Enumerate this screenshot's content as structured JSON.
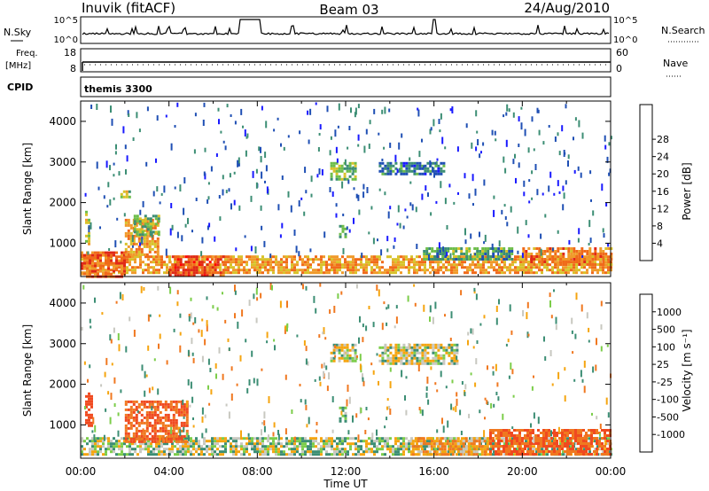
{
  "header": {
    "station": "Inuvik (fitACF)",
    "beam": "Beam 03",
    "date": "24/Aug/2010"
  },
  "panels": {
    "nsky": {
      "label_left": "N.Sky",
      "label_right": "N.Search",
      "ticks_left": [
        "10^5",
        "10^0"
      ],
      "ticks_right": [
        "10^5",
        "10^0"
      ]
    },
    "freq": {
      "label_left_line1": "Freq.",
      "label_left_line2": "[MHz]",
      "label_right": "Nave",
      "ticks_left": [
        "18",
        "8"
      ],
      "ticks_right": [
        "60",
        "0"
      ]
    },
    "cpid": {
      "label": "CPID",
      "mode": "themis 3300"
    }
  },
  "xaxis": {
    "label": "Time UT",
    "ticks": [
      "00:00",
      "04:00",
      "08:00",
      "12:00",
      "16:00",
      "20:00",
      "00:00"
    ],
    "range_hours": [
      0,
      24
    ]
  },
  "yaxis": {
    "label": "Slant Range [km]",
    "ticks": [
      "1000",
      "2000",
      "3000",
      "4000"
    ],
    "range_km": [
      180,
      4500
    ]
  },
  "power_colorbar": {
    "label": "Power [dB]",
    "labels": [
      "4",
      "8",
      "12",
      "16",
      "20",
      "24",
      "28"
    ],
    "colors": [
      "#1a1aff",
      "#1f4fb4",
      "#3c8e74",
      "#6dbd4a",
      "#d8c22a",
      "#f09a2a",
      "#f06a1a",
      "#e02818",
      "#ff0000"
    ]
  },
  "velocity_colorbar": {
    "label": "Velocity [m s⁻¹]",
    "labels": [
      "1000",
      "500",
      "100",
      "25",
      "-25",
      "-100",
      "-500",
      "-1000"
    ],
    "colors": [
      "#2040c0",
      "#2e6cb0",
      "#3c8e74",
      "#7ccd4a",
      "#c8c8c0",
      "#f5a510",
      "#f07820",
      "#f04a20",
      "#ff0000"
    ]
  },
  "chart_data": {
    "type": "heatmap",
    "title": "Inuvik (fitACF) Beam 03 24/Aug/2010",
    "xlabel": "Time UT",
    "ylabel": "Slant Range [km]",
    "xlim_hours": [
      0,
      24
    ],
    "ylim_km": [
      180,
      4500
    ],
    "power_regions": [
      {
        "t": [
          0.0,
          24.0
        ],
        "r": [
          250,
          700
        ],
        "db": 22
      },
      {
        "t": [
          0.0,
          2.0
        ],
        "r": [
          200,
          800
        ],
        "db": 26
      },
      {
        "t": [
          4.0,
          6.5
        ],
        "r": [
          200,
          700
        ],
        "db": 28
      },
      {
        "t": [
          2.0,
          3.5
        ],
        "r": [
          700,
          1600
        ],
        "db": 22
      },
      {
        "t": [
          2.4,
          3.5
        ],
        "r": [
          1200,
          1700
        ],
        "db": 14
      },
      {
        "t": [
          11.3,
          12.4
        ],
        "r": [
          2550,
          3000
        ],
        "db": 14
      },
      {
        "t": [
          11.7,
          12.0
        ],
        "r": [
          1150,
          1450
        ],
        "db": 12
      },
      {
        "t": [
          13.5,
          16.5
        ],
        "r": [
          2700,
          3000
        ],
        "db": 8
      },
      {
        "t": [
          15.5,
          19.5
        ],
        "r": [
          600,
          900
        ],
        "db": 12
      },
      {
        "t": [
          20.0,
          24.0
        ],
        "r": [
          500,
          900
        ],
        "db": 24
      },
      {
        "t": [
          1.8,
          2.2
        ],
        "r": [
          2150,
          2300
        ],
        "db": 16
      },
      {
        "t": [
          0.2,
          0.4
        ],
        "r": [
          1000,
          1800
        ],
        "db": 18
      }
    ],
    "velocity_regions": [
      {
        "t": [
          0.0,
          24.0
        ],
        "r": [
          250,
          700
        ],
        "v": 25
      },
      {
        "t": [
          2.0,
          4.8
        ],
        "r": [
          600,
          1600
        ],
        "v": -300
      },
      {
        "t": [
          0.2,
          0.5
        ],
        "r": [
          1000,
          1800
        ],
        "v": -500
      },
      {
        "t": [
          11.3,
          12.4
        ],
        "r": [
          2550,
          3000
        ],
        "v": 0
      },
      {
        "t": [
          11.7,
          12.0
        ],
        "r": [
          1100,
          1450
        ],
        "v": 100
      },
      {
        "t": [
          15.0,
          18.5
        ],
        "r": [
          300,
          700
        ],
        "v": -100
      },
      {
        "t": [
          18.5,
          24.0
        ],
        "r": [
          300,
          900
        ],
        "v": -300
      },
      {
        "t": [
          13.5,
          17.0
        ],
        "r": [
          2500,
          3000
        ],
        "v": 0
      }
    ]
  }
}
